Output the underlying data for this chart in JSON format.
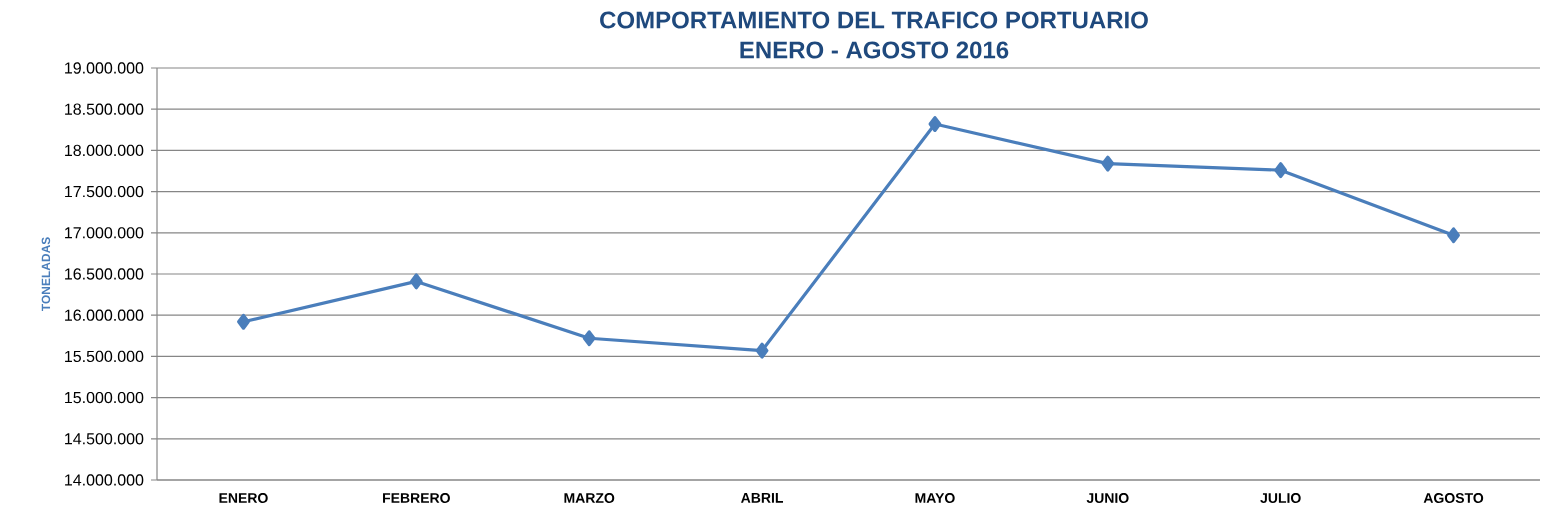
{
  "chart_data": {
    "type": "line",
    "title": "COMPORTAMIENTO DEL TRAFICO PORTUARIO",
    "subtitle": "ENERO - AGOSTO 2016",
    "ylabel": "TONELADAS",
    "categories": [
      "ENERO",
      "FEBRERO",
      "MARZO",
      "ABRIL",
      "MAYO",
      "JUNIO",
      "JULIO",
      "AGOSTO"
    ],
    "series": [
      {
        "color": "#4a7ebb",
        "values": [
          15920000,
          16410000,
          15720000,
          15570000,
          18320000,
          17840000,
          17760000,
          16970000
        ]
      }
    ],
    "ylim": [
      14000000,
      19000000
    ],
    "yticks": [
      {
        "value": 14000000,
        "label": "14.000.000"
      },
      {
        "value": 14500000,
        "label": "14.500.000"
      },
      {
        "value": 15000000,
        "label": "15.000.000"
      },
      {
        "value": 15500000,
        "label": "15.500.000"
      },
      {
        "value": 16000000,
        "label": "16.000.000"
      },
      {
        "value": 16500000,
        "label": "16.500.000"
      },
      {
        "value": 17000000,
        "label": "17.000.000"
      },
      {
        "value": 17500000,
        "label": "17.500.000"
      },
      {
        "value": 18000000,
        "label": "18.000.000"
      },
      {
        "value": 18500000,
        "label": "18.500.000"
      },
      {
        "value": 19000000,
        "label": "19.000.000"
      }
    ],
    "grid": "y",
    "legend": false,
    "marker": "diamond",
    "line_style": "solid"
  }
}
